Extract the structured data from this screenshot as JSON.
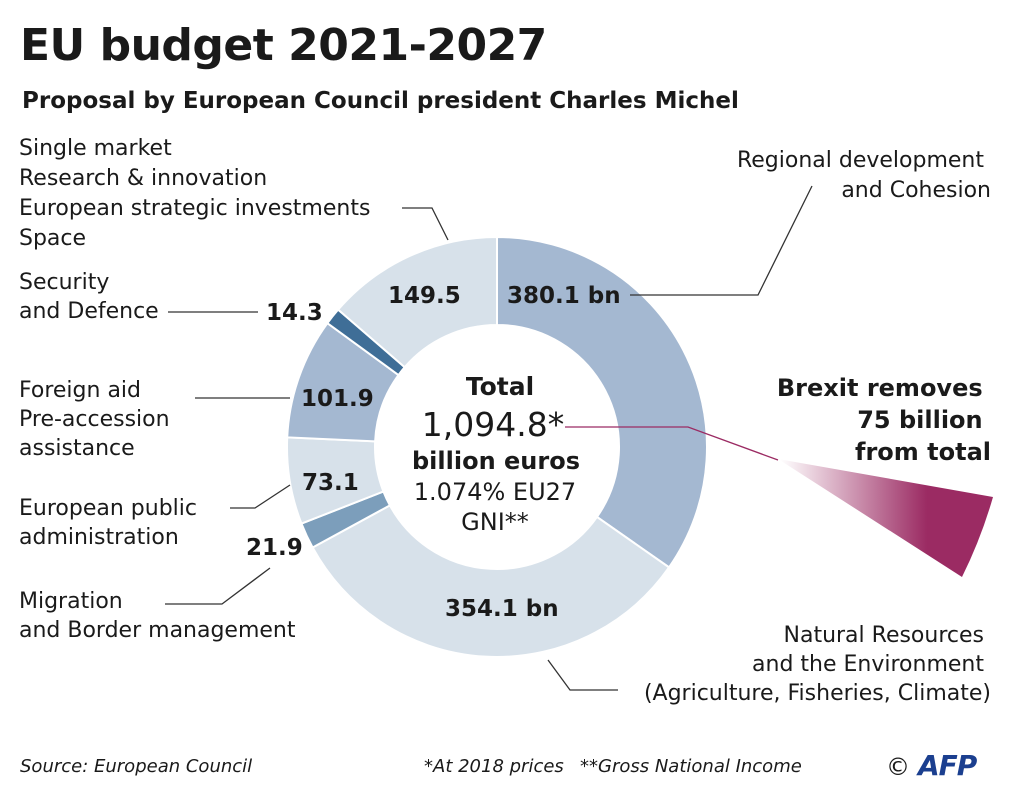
{
  "title": "EU budget 2021-2027",
  "subtitle": "Proposal by European Council president Charles Michel",
  "chart_data": {
    "type": "pie",
    "donut": true,
    "unit": "billion euros",
    "slices": [
      {
        "label": [
          "Regional development",
          "and Cohesion"
        ],
        "value": 380.1,
        "value_text": "380.1 bn",
        "color": "#a4b8d1"
      },
      {
        "label": [
          "Natural Resources",
          "and the Environment",
          "(Agriculture, Fisheries, Climate)"
        ],
        "value": 354.1,
        "value_text": "354.1 bn",
        "color": "#d7e1ea"
      },
      {
        "label": [
          "Migration",
          "and Border management"
        ],
        "value": 21.9,
        "value_text": "21.9",
        "color": "#7c9ebb"
      },
      {
        "label": [
          "European public",
          "administration"
        ],
        "value": 73.1,
        "value_text": "73.1",
        "color": "#d7e1ea"
      },
      {
        "label": [
          "Foreign aid",
          "Pre-accession",
          "assistance"
        ],
        "value": 101.9,
        "value_text": "101.9",
        "color": "#a4b8d1"
      },
      {
        "label": [
          "Security",
          "and Defence"
        ],
        "value": 14.3,
        "value_text": "14.3",
        "color": "#3f6e97"
      },
      {
        "label": [
          "Single market",
          "Research & innovation",
          "European strategic investments",
          "Space"
        ],
        "value": 149.5,
        "value_text": "149.5",
        "color": "#d7e1ea"
      }
    ],
    "center": {
      "line1": "Total",
      "line2": "1,094.8*",
      "line3": "billion euros",
      "line4": "1.074% EU27",
      "line5": "GNI**"
    },
    "annotation": {
      "lines": [
        "Brexit removes",
        "75 billion",
        "from total"
      ],
      "value": 75,
      "color": "#9b2b63"
    }
  },
  "footer": {
    "source": "Source: European Council",
    "note1": "*At 2018 prices",
    "note2": "**Gross National Income",
    "copyright": "©",
    "logo": "AFP"
  }
}
